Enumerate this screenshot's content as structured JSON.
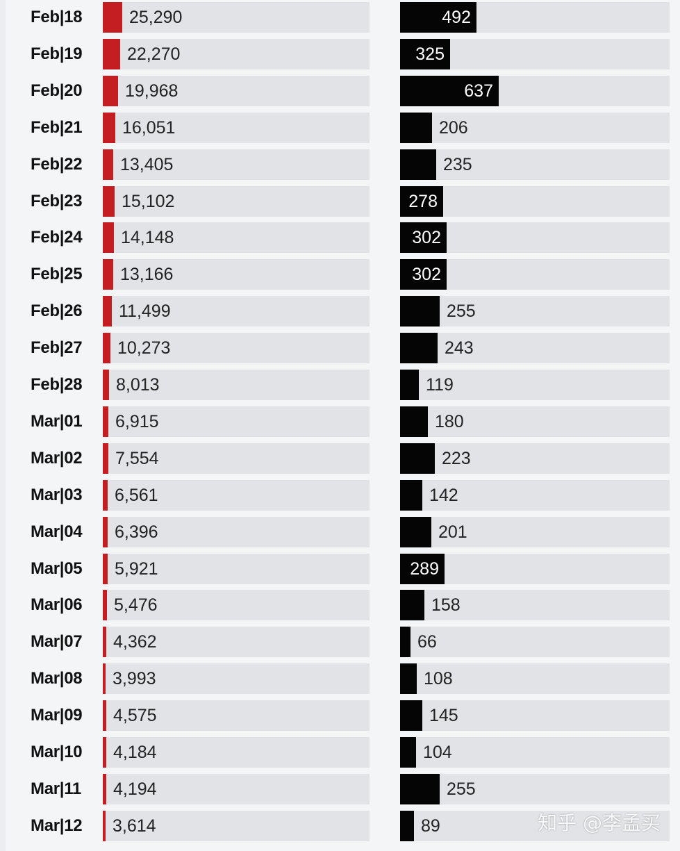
{
  "chart_data": {
    "type": "bar",
    "categories": [
      "Feb|18",
      "Feb|19",
      "Feb|20",
      "Feb|21",
      "Feb|22",
      "Feb|23",
      "Feb|24",
      "Feb|25",
      "Feb|26",
      "Feb|27",
      "Feb|28",
      "Mar|01",
      "Mar|02",
      "Mar|03",
      "Mar|04",
      "Mar|05",
      "Mar|06",
      "Mar|07",
      "Mar|08",
      "Mar|09",
      "Mar|10",
      "Mar|11",
      "Mar|12"
    ],
    "series": [
      {
        "values": [
          25290,
          22270,
          19968,
          16051,
          13405,
          15102,
          14148,
          13166,
          11499,
          10273,
          8013,
          6915,
          7554,
          6561,
          6396,
          5921,
          5476,
          4362,
          3993,
          4575,
          4184,
          4194,
          3614
        ],
        "labels": [
          "25,290",
          "22,270",
          "19,968",
          "16,051",
          "13,405",
          "15,102",
          "14,148",
          "13,166",
          "11,499",
          "10,273",
          "8,013",
          "6,915",
          "7,554",
          "6,561",
          "6,396",
          "5,921",
          "5,476",
          "4,362",
          "3,993",
          "4,575",
          "4,184",
          "4,194",
          "3,614"
        ],
        "color": "#c41e22"
      },
      {
        "values": [
          492,
          325,
          637,
          206,
          235,
          278,
          302,
          302,
          255,
          243,
          119,
          180,
          223,
          142,
          201,
          289,
          158,
          66,
          108,
          145,
          104,
          255,
          89
        ],
        "labels": [
          "492",
          "325",
          "637",
          "206",
          "235",
          "278",
          "302",
          "302",
          "255",
          "243",
          "119",
          "180",
          "223",
          "142",
          "201",
          "289",
          "158",
          "66",
          "108",
          "145",
          "104",
          "255",
          "89"
        ],
        "color": "#050505"
      }
    ],
    "grid": false,
    "legend": "none"
  },
  "watermark": "知乎 @李孟买",
  "colors": {
    "page_background": "#ebedf0",
    "track": "#e1e3e7",
    "red_bar": "#c41e22",
    "black_bar": "#050505"
  }
}
